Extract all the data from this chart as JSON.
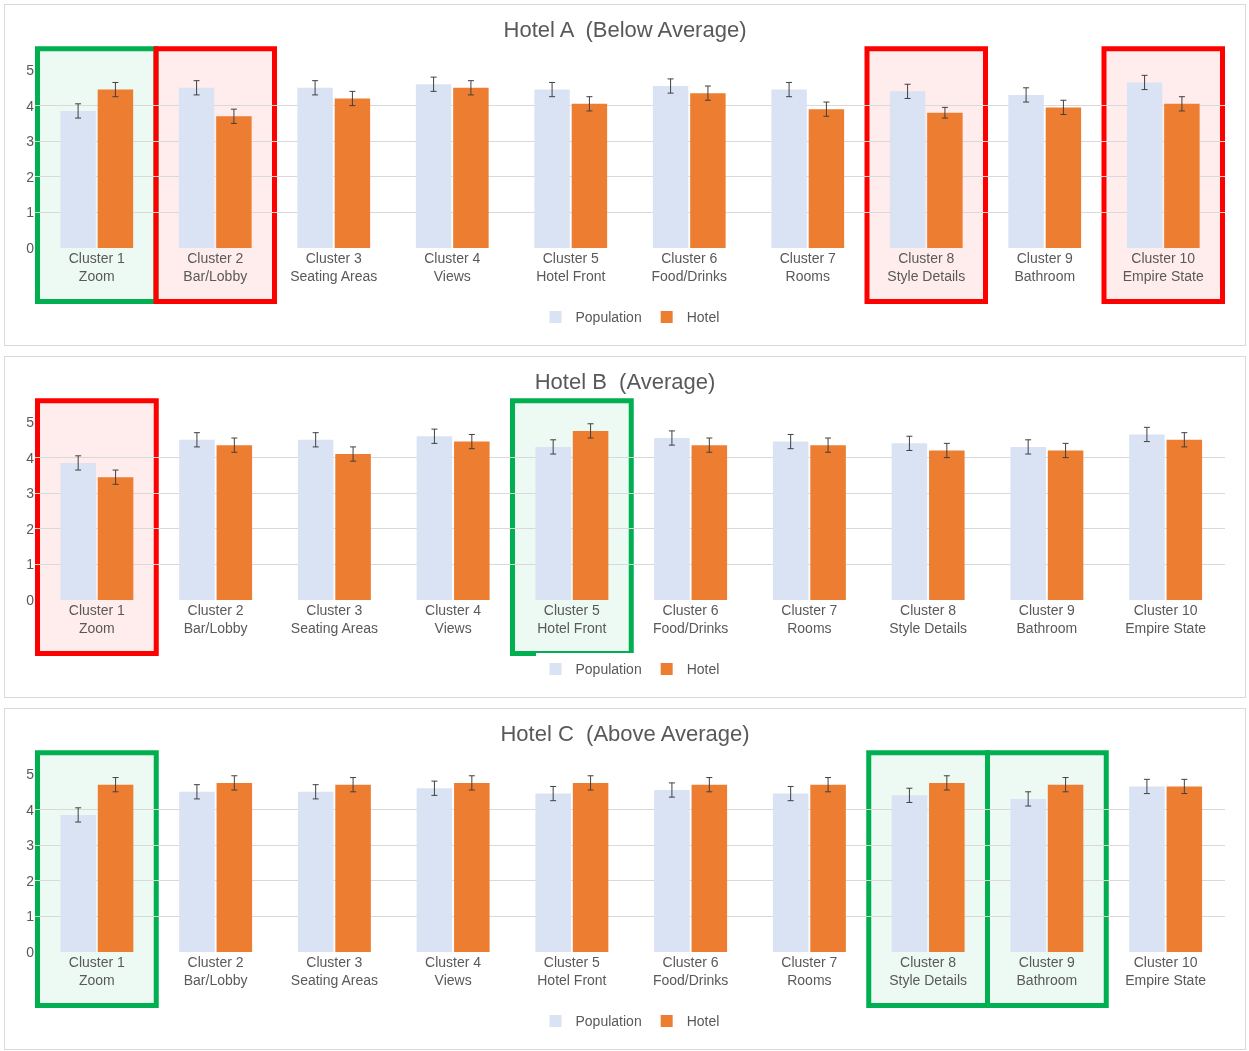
{
  "chart_data": [
    {
      "type": "bar",
      "title": "Hotel A  (Below Average)",
      "categories": [
        "Cluster 1\nZoom",
        "Cluster 2\nBar/Lobby",
        "Cluster 3\nSeating Areas",
        "Cluster 4\nViews",
        "Cluster 5\nHotel Front",
        "Cluster 6\nFood/Drinks",
        "Cluster 7\nRooms",
        "Cluster 8\nStyle Details",
        "Cluster 9\nBathroom",
        "Cluster 10\nEmpire State"
      ],
      "series": [
        {
          "name": "Population",
          "color": "#dae3f3",
          "values": [
            3.85,
            4.5,
            4.5,
            4.6,
            4.45,
            4.55,
            4.45,
            4.4,
            4.3,
            4.65
          ],
          "errors": [
            0.2,
            0.2,
            0.2,
            0.2,
            0.2,
            0.2,
            0.2,
            0.2,
            0.2,
            0.2
          ]
        },
        {
          "name": "Hotel",
          "color": "#ed7d31",
          "values": [
            4.45,
            3.7,
            4.2,
            4.5,
            4.05,
            4.35,
            3.9,
            3.8,
            3.95,
            4.05
          ],
          "errors": [
            0.2,
            0.2,
            0.2,
            0.2,
            0.2,
            0.2,
            0.2,
            0.15,
            0.2,
            0.2
          ]
        }
      ],
      "ylim": [
        0,
        5
      ],
      "yticks": [
        0,
        1,
        2,
        3,
        4,
        5
      ],
      "grid": "y",
      "legend": "bottom",
      "bands": [
        {
          "axis": "x",
          "from": "Cluster 1\nZoom",
          "to": "Cluster 1\nZoom",
          "color": "#00b050"
        },
        {
          "axis": "x",
          "from": "Cluster 2\nBar/Lobby",
          "to": "Cluster 2\nBar/Lobby",
          "color": "#ff0000"
        },
        {
          "axis": "x",
          "from": "Cluster 8\nStyle Details",
          "to": "Cluster 8\nStyle Details",
          "color": "#ff0000"
        },
        {
          "axis": "x",
          "from": "Cluster 10\nEmpire State",
          "to": "Cluster 10\nEmpire State",
          "color": "#ff0000"
        }
      ]
    },
    {
      "type": "bar",
      "title": "Hotel B  (Average)",
      "categories": [
        "Cluster 1\nZoom",
        "Cluster 2\nBar/Lobby",
        "Cluster 3\nSeating Areas",
        "Cluster 4\nViews",
        "Cluster 5\nHotel Front",
        "Cluster 6\nFood/Drinks",
        "Cluster 7\nRooms",
        "Cluster 8\nStyle Details",
        "Cluster 9\nBathroom",
        "Cluster 10\nEmpire State"
      ],
      "series": [
        {
          "name": "Population",
          "color": "#dae3f3",
          "values": [
            3.85,
            4.5,
            4.5,
            4.6,
            4.3,
            4.55,
            4.45,
            4.4,
            4.3,
            4.65
          ],
          "errors": [
            0.2,
            0.2,
            0.2,
            0.2,
            0.2,
            0.2,
            0.2,
            0.2,
            0.2,
            0.2
          ]
        },
        {
          "name": "Hotel",
          "color": "#ed7d31",
          "values": [
            3.45,
            4.35,
            4.1,
            4.45,
            4.75,
            4.35,
            4.35,
            4.2,
            4.2,
            4.5
          ],
          "errors": [
            0.2,
            0.2,
            0.2,
            0.2,
            0.2,
            0.2,
            0.2,
            0.2,
            0.2,
            0.2
          ]
        }
      ],
      "ylim": [
        0,
        5
      ],
      "yticks": [
        0,
        1,
        2,
        3,
        4,
        5
      ],
      "grid": "y",
      "legend": "bottom",
      "bands": [
        {
          "axis": "x",
          "from": "Cluster 1\nZoom",
          "to": "Cluster 1\nZoom",
          "color": "#ff0000"
        },
        {
          "axis": "x",
          "from": "Cluster 5\nHotel Front",
          "to": "Cluster 5\nHotel Front",
          "color": "#00b050"
        }
      ]
    },
    {
      "type": "bar",
      "title": "Hotel C  (Above Average)",
      "categories": [
        "Cluster 1\nZoom",
        "Cluster 2\nBar/Lobby",
        "Cluster 3\nSeating Areas",
        "Cluster 4\nViews",
        "Cluster 5\nHotel Front",
        "Cluster 6\nFood/Drinks",
        "Cluster 7\nRooms",
        "Cluster 8\nStyle Details",
        "Cluster 9\nBathroom",
        "Cluster 10\nEmpire State"
      ],
      "series": [
        {
          "name": "Population",
          "color": "#dae3f3",
          "values": [
            3.85,
            4.5,
            4.5,
            4.6,
            4.45,
            4.55,
            4.45,
            4.4,
            4.3,
            4.65
          ],
          "errors": [
            0.2,
            0.2,
            0.2,
            0.2,
            0.2,
            0.2,
            0.2,
            0.2,
            0.2,
            0.2
          ]
        },
        {
          "name": "Hotel",
          "color": "#ed7d31",
          "values": [
            4.7,
            4.75,
            4.7,
            4.75,
            4.75,
            4.7,
            4.7,
            4.75,
            4.7,
            4.65
          ],
          "errors": [
            0.2,
            0.2,
            0.2,
            0.2,
            0.2,
            0.2,
            0.2,
            0.2,
            0.2,
            0.2
          ]
        }
      ],
      "ylim": [
        0,
        5
      ],
      "yticks": [
        0,
        1,
        2,
        3,
        4,
        5
      ],
      "grid": "y",
      "legend": "bottom",
      "bands": [
        {
          "axis": "x",
          "from": "Cluster 1\nZoom",
          "to": "Cluster 1\nZoom",
          "color": "#00b050"
        },
        {
          "axis": "x",
          "from": "Cluster 8\nStyle Details",
          "to": "Cluster 8\nStyle Details",
          "color": "#00b050"
        },
        {
          "axis": "x",
          "from": "Cluster 9\nBathroom",
          "to": "Cluster 9\nBathroom",
          "color": "#00b050"
        }
      ]
    }
  ]
}
